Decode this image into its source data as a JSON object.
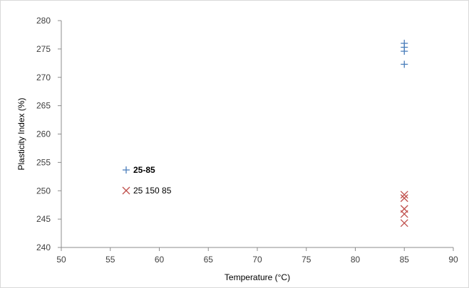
{
  "chart_data": {
    "type": "scatter",
    "title": "",
    "xlabel": "Temperature (°C)",
    "ylabel": "Plasticity Index (%)",
    "xlim": [
      50,
      90
    ],
    "ylim": [
      240,
      280
    ],
    "xticks": [
      50,
      55,
      60,
      65,
      70,
      75,
      80,
      85,
      90
    ],
    "yticks": [
      240,
      245,
      250,
      255,
      260,
      265,
      270,
      275,
      280
    ],
    "grid": false,
    "legend_position": "left",
    "series": [
      {
        "name": "25-85",
        "marker": "plus",
        "color": "#4a7ebb",
        "points": [
          [
            85,
            276.0
          ],
          [
            85,
            275.3
          ],
          [
            85,
            274.6
          ],
          [
            85,
            272.3
          ]
        ]
      },
      {
        "name": "25 150 85",
        "marker": "x",
        "color": "#c0504d",
        "points": [
          [
            85,
            249.3
          ],
          [
            85,
            248.7
          ],
          [
            85,
            246.8
          ],
          [
            85,
            245.9
          ],
          [
            85,
            244.3
          ]
        ]
      }
    ]
  }
}
